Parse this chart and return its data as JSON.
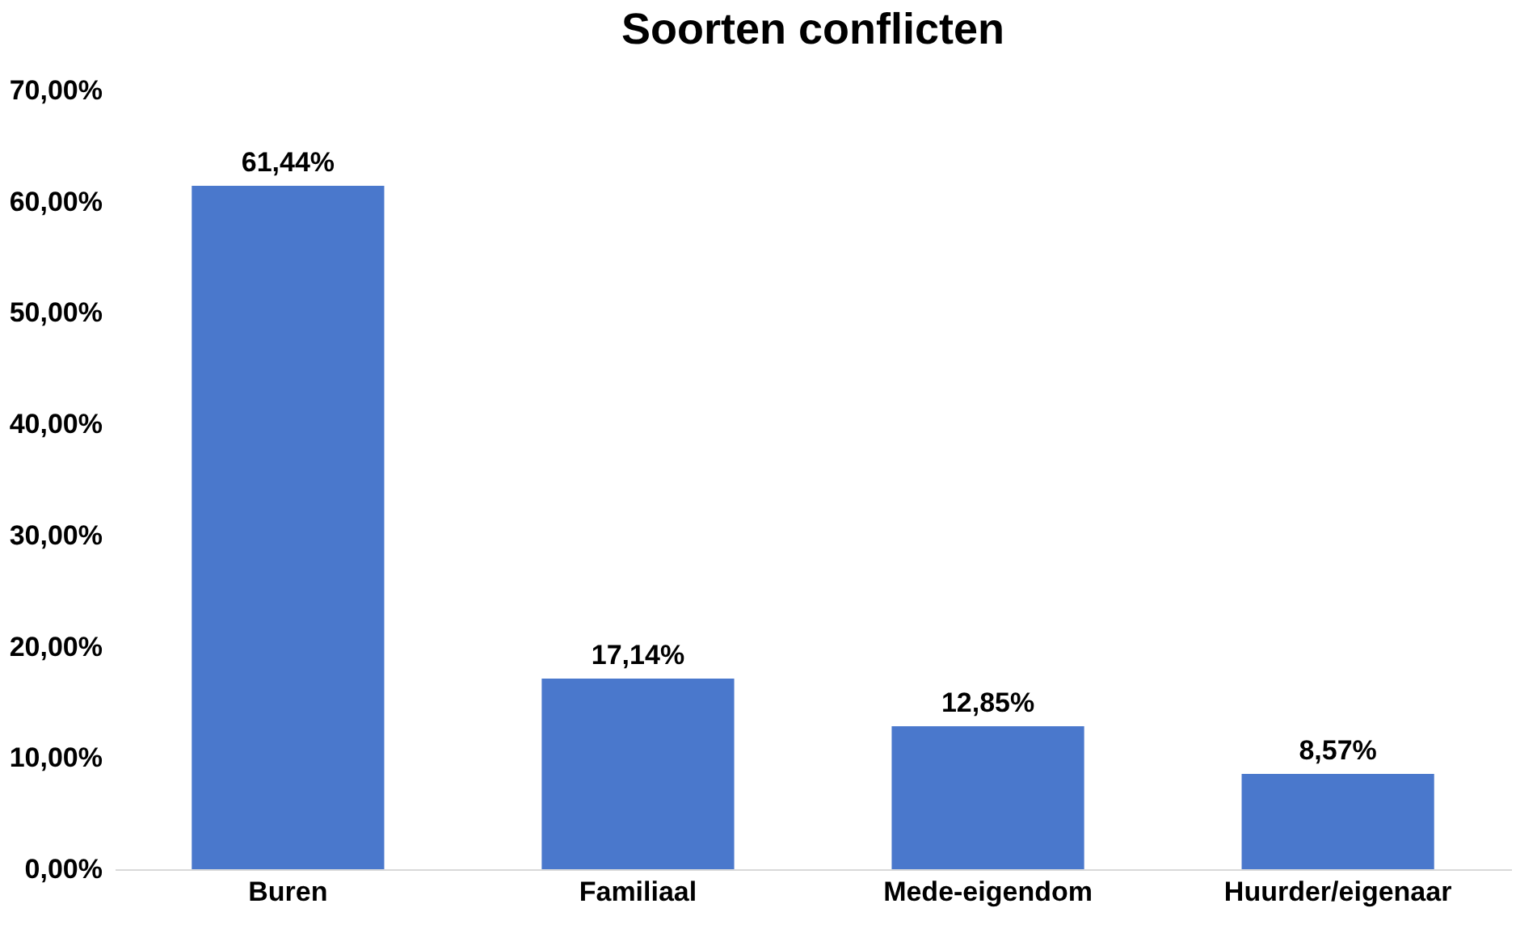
{
  "chart_data": {
    "type": "bar",
    "title": "Soorten conflicten",
    "categories": [
      "Buren",
      "Familiaal",
      "Mede-eigendom",
      "Huurder/eigenaar"
    ],
    "values": [
      61.44,
      17.14,
      12.85,
      8.57
    ],
    "value_labels": [
      "61,44%",
      "17,14%",
      "12,85%",
      "8,57%"
    ],
    "color": "#4a78cc",
    "ylim": [
      0,
      70
    ],
    "yticks": [
      {
        "value": 0,
        "label": "0,00%"
      },
      {
        "value": 10,
        "label": "10,00%"
      },
      {
        "value": 20,
        "label": "20,00%"
      },
      {
        "value": 30,
        "label": "30,00%"
      },
      {
        "value": 40,
        "label": "40,00%"
      },
      {
        "value": 50,
        "label": "50,00%"
      },
      {
        "value": 60,
        "label": "60,00%"
      },
      {
        "value": 70,
        "label": "70,00%"
      }
    ],
    "grid": false
  }
}
